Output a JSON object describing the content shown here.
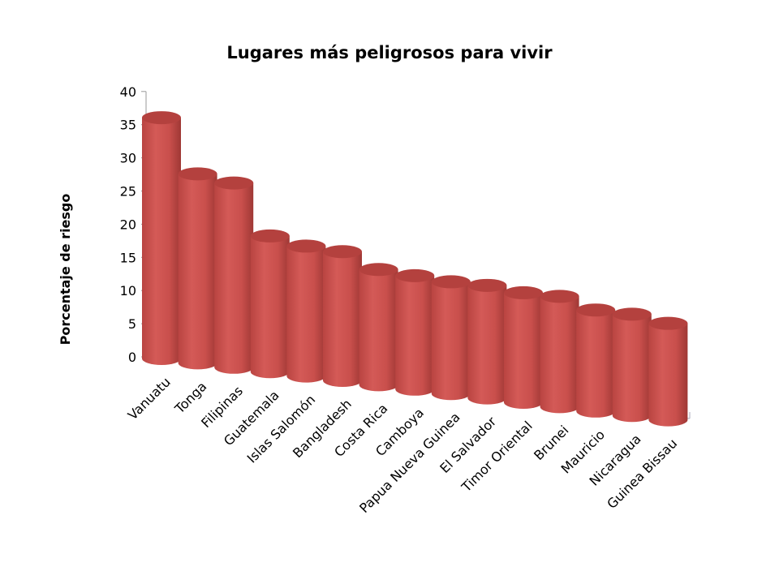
{
  "chart_data": {
    "type": "bar",
    "style": "3d-cylinder",
    "title": "Lugares más peligrosos para vivir",
    "xlabel": "",
    "ylabel": "Porcentaje de riesgo",
    "ylim": [
      0,
      40
    ],
    "yticks": [
      0,
      5,
      10,
      15,
      20,
      25,
      30,
      35,
      40
    ],
    "grid": false,
    "legend": "none",
    "bar_color": "#c0504d",
    "categories": [
      "Vanuatu",
      "Tonga",
      "Filipinas",
      "Guatemala",
      "Islas Salomón",
      "Bangladesh",
      "Costa Rica",
      "Camboya",
      "Papua Nueva Guinea",
      "El Salvador",
      "Timor Oriental",
      "Brunei",
      "Mauricio",
      "Nicaragua",
      "Guinea Bissau"
    ],
    "values": [
      36.3,
      28.6,
      28.0,
      20.7,
      19.9,
      19.8,
      17.8,
      17.6,
      17.4,
      17.6,
      17.2,
      17.4,
      16.0,
      16.1,
      15.4
    ]
  }
}
